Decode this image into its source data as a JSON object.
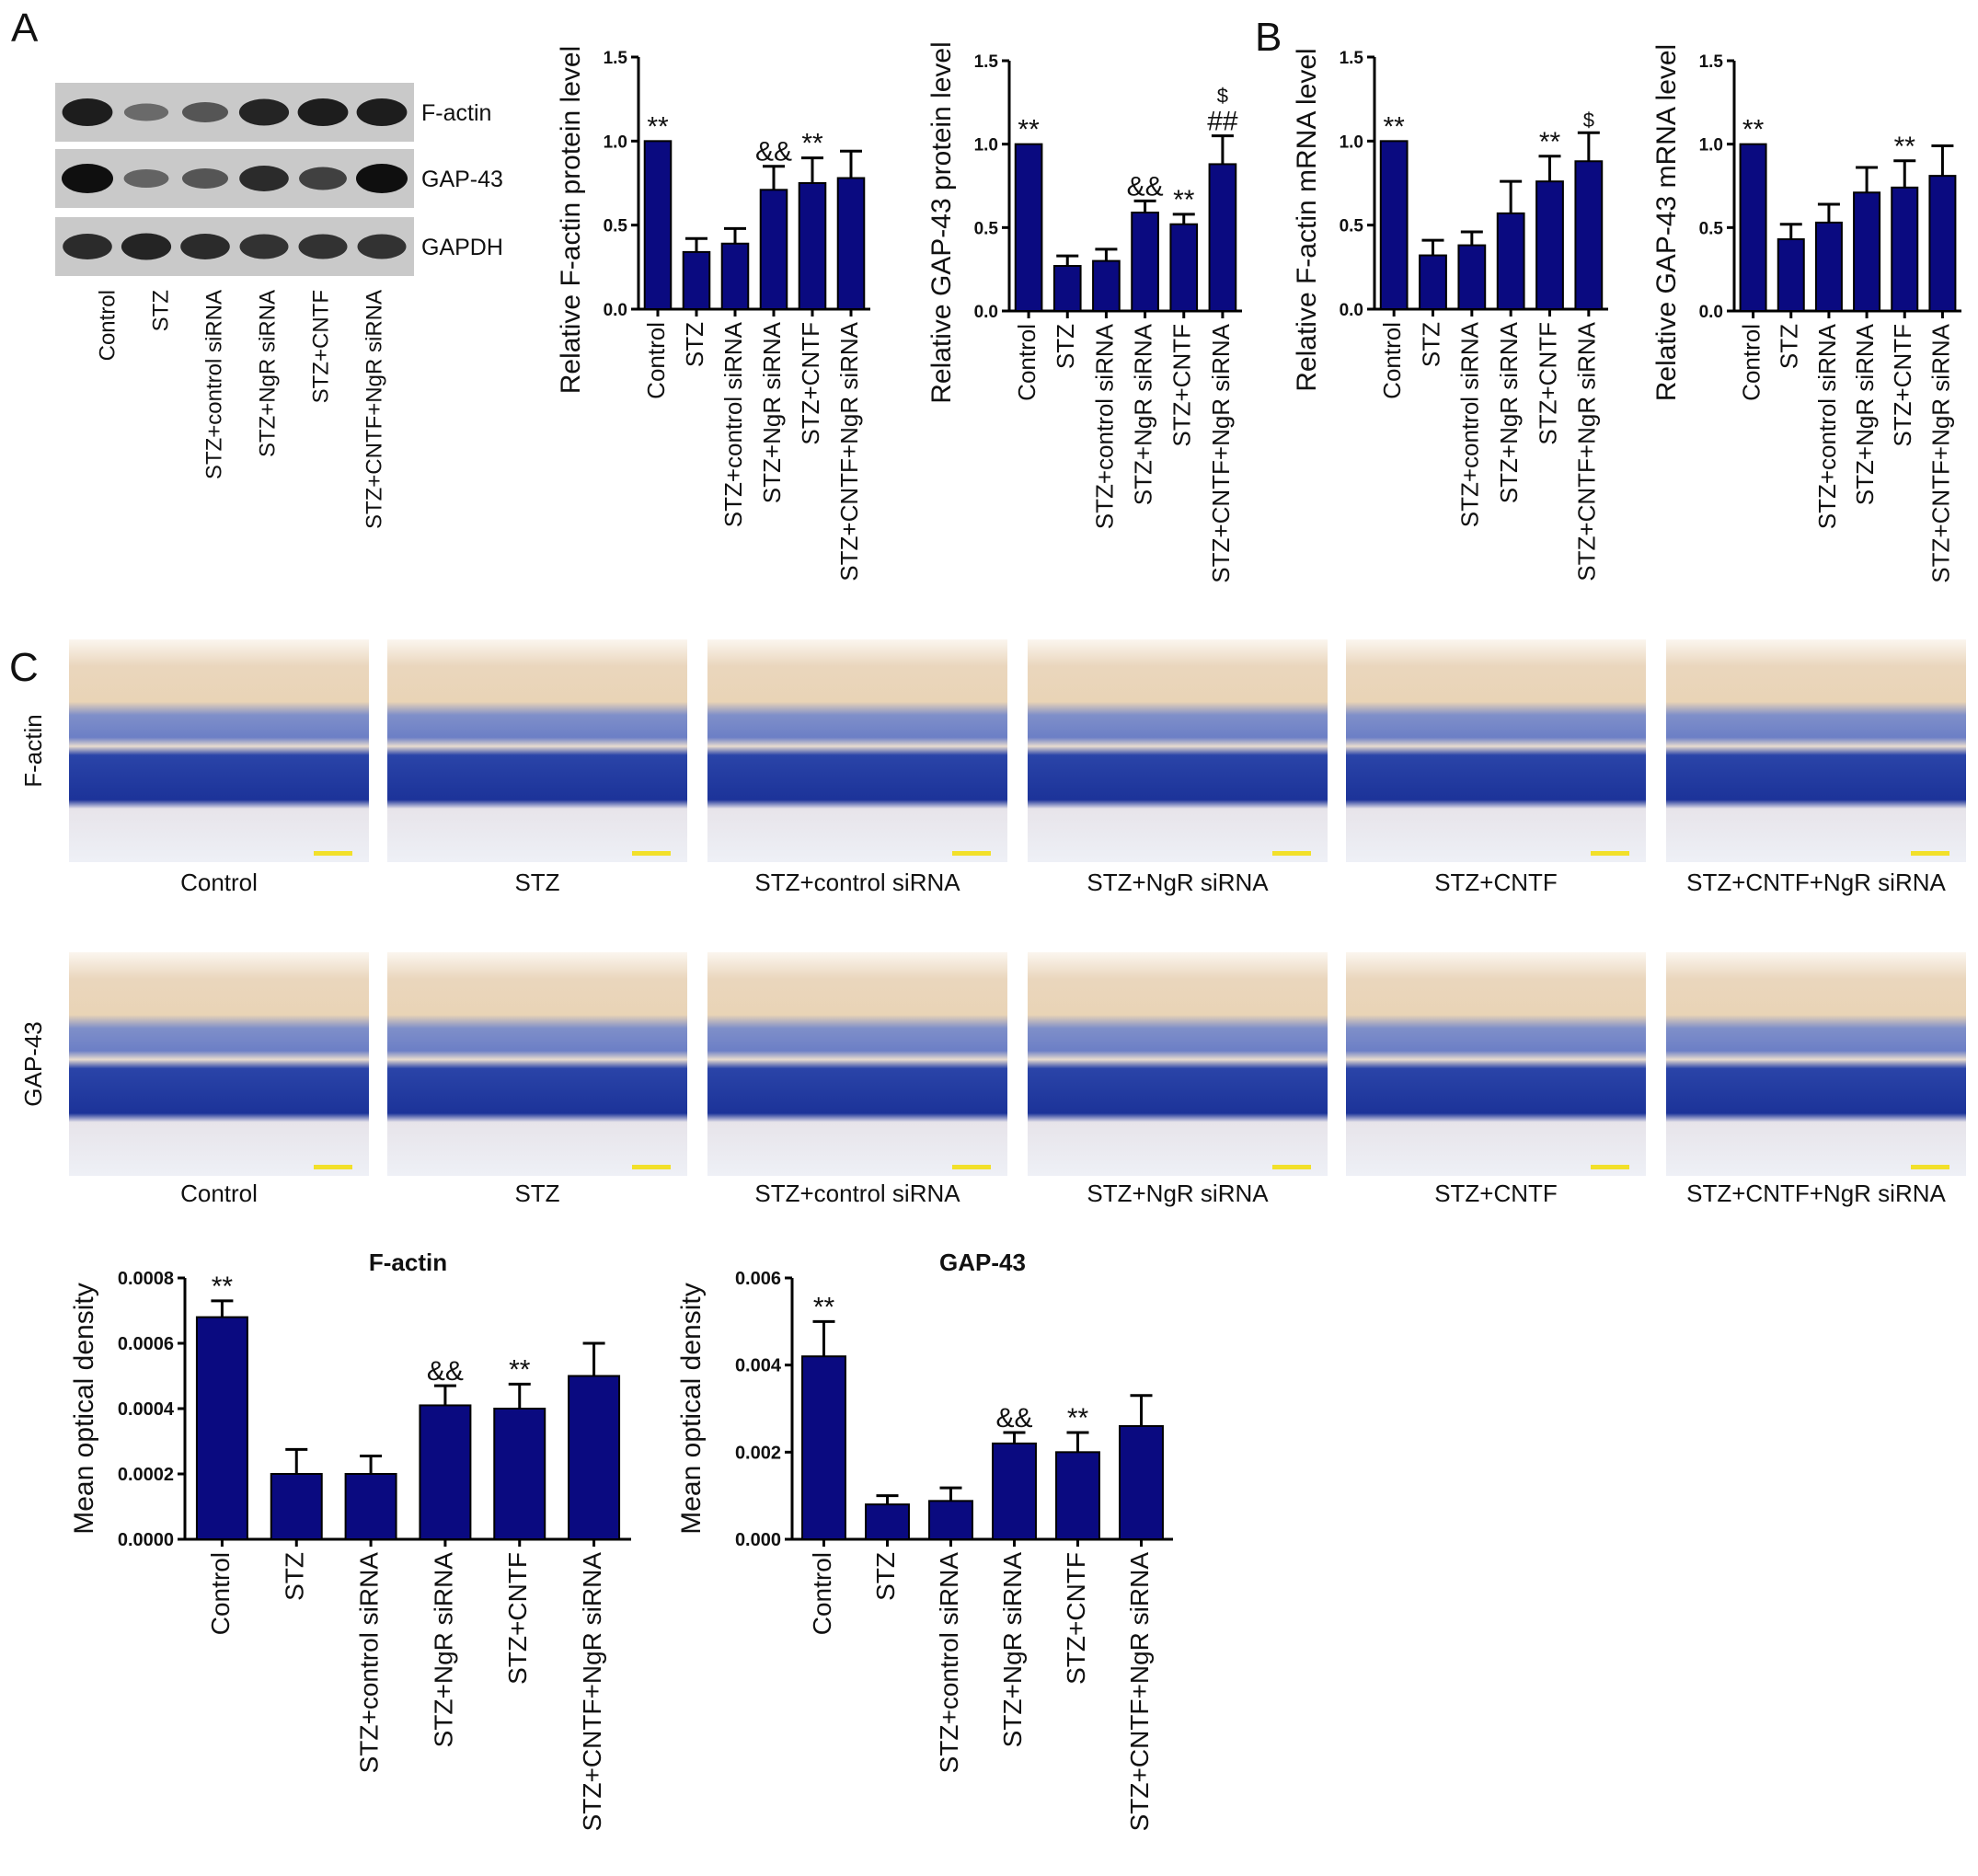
{
  "panel_labels": [
    "A",
    "B",
    "C"
  ],
  "groups": [
    "Control",
    "STZ",
    "STZ+control siRNA",
    "STZ+NgR siRNA",
    "STZ+CNTF",
    "STZ+CNTF+NgR siRNA"
  ],
  "colors": {
    "bar": "#0a0a80",
    "scale_bar": "#f2e02a",
    "stain_blue": "#2a44a8",
    "stain_brown": "#d9b48f"
  },
  "western_blot": {
    "rows": [
      {
        "label": "F-actin",
        "band_intensity": [
          0.9,
          0.35,
          0.5,
          0.85,
          0.9,
          0.9
        ]
      },
      {
        "label": "GAP-43",
        "band_intensity": [
          1.0,
          0.4,
          0.5,
          0.8,
          0.65,
          1.0
        ]
      },
      {
        "label": "GAPDH",
        "band_intensity": [
          0.8,
          0.85,
          0.8,
          0.75,
          0.75,
          0.75
        ]
      }
    ]
  },
  "histology": {
    "rows": [
      {
        "label": "F-actin",
        "image": "retina-section-f-actin"
      },
      {
        "label": "GAP-43",
        "image": "retina-section-gap-43"
      }
    ]
  },
  "chart_data": [
    {
      "type": "bar",
      "panel": "A",
      "ylabel": "Relative F-actin protein level",
      "ylim": [
        0,
        1.5
      ],
      "yticks": [
        "0.0",
        "0.5",
        "1.0",
        "1.5"
      ],
      "categories": [
        "Control",
        "STZ",
        "STZ+control siRNA",
        "STZ+NgR siRNA",
        "STZ+CNTF",
        "STZ+CNTF+NgR siRNA"
      ],
      "values": [
        1.0,
        0.34,
        0.39,
        0.71,
        0.75,
        0.78
      ],
      "errors": [
        0,
        0.08,
        0.09,
        0.14,
        0.15,
        0.16
      ],
      "annotations": [
        [
          "**"
        ],
        [],
        [],
        [
          "&&"
        ],
        [
          "**"
        ],
        []
      ]
    },
    {
      "type": "bar",
      "panel": "A",
      "ylabel": "Relative GAP-43 protein level",
      "ylim": [
        0,
        1.5
      ],
      "yticks": [
        "0.0",
        "0.5",
        "1.0",
        "1.5"
      ],
      "categories": [
        "Control",
        "STZ",
        "STZ+control siRNA",
        "STZ+NgR siRNA",
        "STZ+CNTF",
        "STZ+CNTF+NgR siRNA"
      ],
      "values": [
        1.0,
        0.27,
        0.3,
        0.59,
        0.52,
        0.88
      ],
      "errors": [
        0,
        0.06,
        0.07,
        0.07,
        0.06,
        0.17
      ],
      "annotations": [
        [
          "**"
        ],
        [],
        [],
        [
          "&&"
        ],
        [
          "**"
        ],
        [
          "$",
          "##"
        ]
      ]
    },
    {
      "type": "bar",
      "panel": "B",
      "ylabel": "Relative F-actin mRNA level",
      "ylim": [
        0,
        1.5
      ],
      "yticks": [
        "0.0",
        "0.5",
        "1.0",
        "1.5"
      ],
      "categories": [
        "Control",
        "STZ",
        "STZ+control siRNA",
        "STZ+NgR siRNA",
        "STZ+CNTF",
        "STZ+CNTF+NgR siRNA"
      ],
      "values": [
        1.0,
        0.32,
        0.38,
        0.57,
        0.76,
        0.88
      ],
      "errors": [
        0,
        0.09,
        0.08,
        0.19,
        0.15,
        0.17
      ],
      "annotations": [
        [
          "**"
        ],
        [],
        [],
        [],
        [
          "**"
        ],
        [
          "$"
        ]
      ]
    },
    {
      "type": "bar",
      "panel": "B",
      "ylabel": "Relative GAP-43 mRNA level",
      "ylim": [
        0,
        1.5
      ],
      "yticks": [
        "0.0",
        "0.5",
        "1.0",
        "1.5"
      ],
      "categories": [
        "Control",
        "STZ",
        "STZ+control siRNA",
        "STZ+NgR siRNA",
        "STZ+CNTF",
        "STZ+CNTF+NgR siRNA"
      ],
      "values": [
        1.0,
        0.43,
        0.53,
        0.71,
        0.74,
        0.81
      ],
      "errors": [
        0,
        0.09,
        0.11,
        0.15,
        0.16,
        0.18
      ],
      "annotations": [
        [
          "**"
        ],
        [],
        [],
        [],
        [
          "**"
        ],
        []
      ]
    },
    {
      "type": "bar",
      "panel": "C",
      "title": "F-actin",
      "ylabel": "Mean optical density",
      "ylim": [
        0,
        0.0008
      ],
      "yticks": [
        "0.0000",
        "0.0002",
        "0.0004",
        "0.0006",
        "0.0008"
      ],
      "categories": [
        "Control",
        "STZ",
        "STZ+control siRNA",
        "STZ+NgR siRNA",
        "STZ+CNTF",
        "STZ+CNTF+NgR siRNA"
      ],
      "values": [
        0.00068,
        0.0002,
        0.0002,
        0.00041,
        0.0004,
        0.0005
      ],
      "errors": [
        5e-05,
        7.5e-05,
        5.5e-05,
        6e-05,
        7.5e-05,
        0.0001
      ],
      "annotations": [
        [
          "**"
        ],
        [],
        [],
        [
          "&&"
        ],
        [
          "**"
        ],
        []
      ]
    },
    {
      "type": "bar",
      "panel": "C",
      "title": "GAP-43",
      "ylabel": "Mean optical density",
      "ylim": [
        0,
        0.006
      ],
      "yticks": [
        "0.000",
        "0.002",
        "0.004",
        "0.006"
      ],
      "categories": [
        "Control",
        "STZ",
        "STZ+control siRNA",
        "STZ+NgR siRNA",
        "STZ+CNTF",
        "STZ+CNTF+NgR siRNA"
      ],
      "values": [
        0.0042,
        0.0008,
        0.00088,
        0.0022,
        0.002,
        0.0026
      ],
      "errors": [
        0.0008,
        0.0002,
        0.0003,
        0.00025,
        0.00045,
        0.0007
      ],
      "annotations": [
        [
          "**"
        ],
        [],
        [],
        [
          "&&"
        ],
        [
          "**"
        ],
        []
      ]
    }
  ]
}
